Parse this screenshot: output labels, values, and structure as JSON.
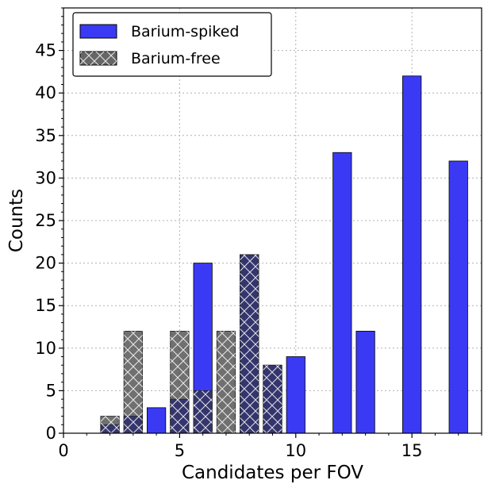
{
  "chart_data": {
    "type": "bar",
    "title": "",
    "xlabel": "Candidates per FOV",
    "ylabel": "Counts",
    "xlim": [
      0,
      18
    ],
    "ylim": [
      0,
      50
    ],
    "xticks": [
      0,
      5,
      10,
      15
    ],
    "yticks": [
      0,
      5,
      10,
      15,
      20,
      25,
      30,
      35,
      40,
      45
    ],
    "grid": true,
    "legend_position": "top-left",
    "overlay": true,
    "series": [
      {
        "name": "Barium-spiked",
        "color": "#3a3af5",
        "x": [
          2,
          3,
          4,
          5,
          6,
          8,
          9,
          10,
          12,
          13,
          15,
          17
        ],
        "values": [
          1,
          2,
          3,
          4,
          20,
          21,
          8,
          9,
          33,
          12,
          42,
          32
        ]
      },
      {
        "name": "Barium-free",
        "color": "#666666",
        "hatch": "cross",
        "x": [
          2,
          3,
          5,
          6,
          7,
          8,
          9
        ],
        "values": [
          2,
          12,
          12,
          5,
          12,
          21,
          8
        ]
      }
    ]
  }
}
